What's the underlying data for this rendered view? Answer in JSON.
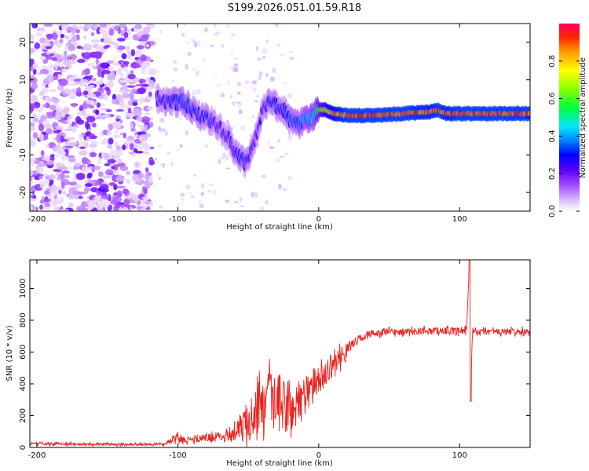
{
  "title": "S199.2026.051.01.59.R18",
  "colorbar": {
    "label": "Normalized spectral amplitude",
    "ticks": [
      "0.0",
      "0.2",
      "0.4",
      "0.6",
      "0.8"
    ],
    "tick_values": [
      0.0,
      0.2,
      0.4,
      0.6,
      0.8
    ],
    "range": [
      0.0,
      1.0
    ]
  },
  "chart_data": [
    {
      "type": "heatmap",
      "title": "",
      "xlabel": "Height of straight line (km)",
      "ylabel": "Frequency (Hz)",
      "xlim": [
        -205,
        150
      ],
      "ylim": [
        -25,
        25
      ],
      "xticks": [
        -200,
        -100,
        0,
        100
      ],
      "xtick_labels": [
        "-200",
        "-100",
        "0",
        "100"
      ],
      "yticks": [
        -20,
        -10,
        0,
        10,
        20
      ],
      "ytick_labels": [
        "-20",
        "-10",
        "0",
        "10",
        "20"
      ],
      "colormap": "rainbow",
      "description_text": "",
      "ridge": {
        "x": [
          -115,
          -105,
          -95,
          -88,
          -80,
          -72,
          -65,
          -58,
          -52,
          -45,
          -40,
          -35,
          -30,
          -25,
          -20,
          -15,
          -10,
          -5,
          0,
          5,
          10,
          20,
          40,
          60,
          80,
          85,
          90,
          100,
          110,
          150
        ],
        "freq": [
          5,
          4,
          4,
          1,
          0,
          -2,
          -5,
          -10,
          -12,
          -6,
          2,
          4,
          3,
          2,
          -1,
          -2,
          -1,
          0,
          2,
          2,
          1,
          0.5,
          0.5,
          1,
          1.5,
          2,
          1,
          1,
          1,
          1
        ],
        "amplitude": [
          0.25,
          0.3,
          0.35,
          0.3,
          0.3,
          0.25,
          0.25,
          0.3,
          0.3,
          0.25,
          0.25,
          0.3,
          0.3,
          0.3,
          0.35,
          0.35,
          0.4,
          0.45,
          0.6,
          0.8,
          0.85,
          0.95,
          0.95,
          0.95,
          0.9,
          0.95,
          0.9,
          0.95,
          0.95,
          0.95
        ]
      },
      "noise_region_x": [
        -205,
        -118
      ]
    },
    {
      "type": "line",
      "title": "",
      "xlabel": "Height of straight line (km)",
      "ylabel": "SNR (10 * v/v)",
      "xlim": [
        -205,
        150
      ],
      "ylim": [
        0,
        1180
      ],
      "xticks": [
        -200,
        -100,
        0,
        100
      ],
      "xtick_labels": [
        "-200",
        "-100",
        "0",
        "100"
      ],
      "yticks": [
        0,
        200,
        400,
        600,
        800,
        1000
      ],
      "ytick_labels": [
        "0",
        "200",
        "400",
        "600",
        "800",
        "1000"
      ],
      "color": "#e8231f",
      "series": [
        {
          "name": "SNR",
          "x": [
            -205,
            -150,
            -110,
            -100,
            -90,
            -80,
            -70,
            -60,
            -50,
            -45,
            -40,
            -35,
            -30,
            -25,
            -20,
            -15,
            -10,
            -5,
            0,
            5,
            10,
            15,
            20,
            25,
            30,
            40,
            50,
            60,
            70,
            80,
            90,
            100,
            105,
            107,
            108,
            109,
            110,
            115,
            120,
            130,
            140,
            150
          ],
          "y": [
            25,
            20,
            20,
            60,
            45,
            60,
            70,
            90,
            150,
            250,
            230,
            280,
            290,
            270,
            220,
            300,
            330,
            380,
            420,
            470,
            520,
            560,
            620,
            660,
            690,
            720,
            730,
            725,
            730,
            735,
            735,
            730,
            740,
            1180,
            290,
            750,
            720,
            725,
            730,
            725,
            730,
            720
          ],
          "noise_amplitude": [
            10,
            8,
            8,
            25,
            20,
            25,
            30,
            45,
            120,
            180,
            170,
            200,
            190,
            170,
            150,
            140,
            130,
            120,
            90,
            80,
            70,
            60,
            40,
            30,
            25,
            25,
            22,
            22,
            22,
            22,
            22,
            22,
            30,
            0,
            0,
            40,
            25,
            22,
            22,
            22,
            22,
            22
          ]
        }
      ]
    }
  ]
}
